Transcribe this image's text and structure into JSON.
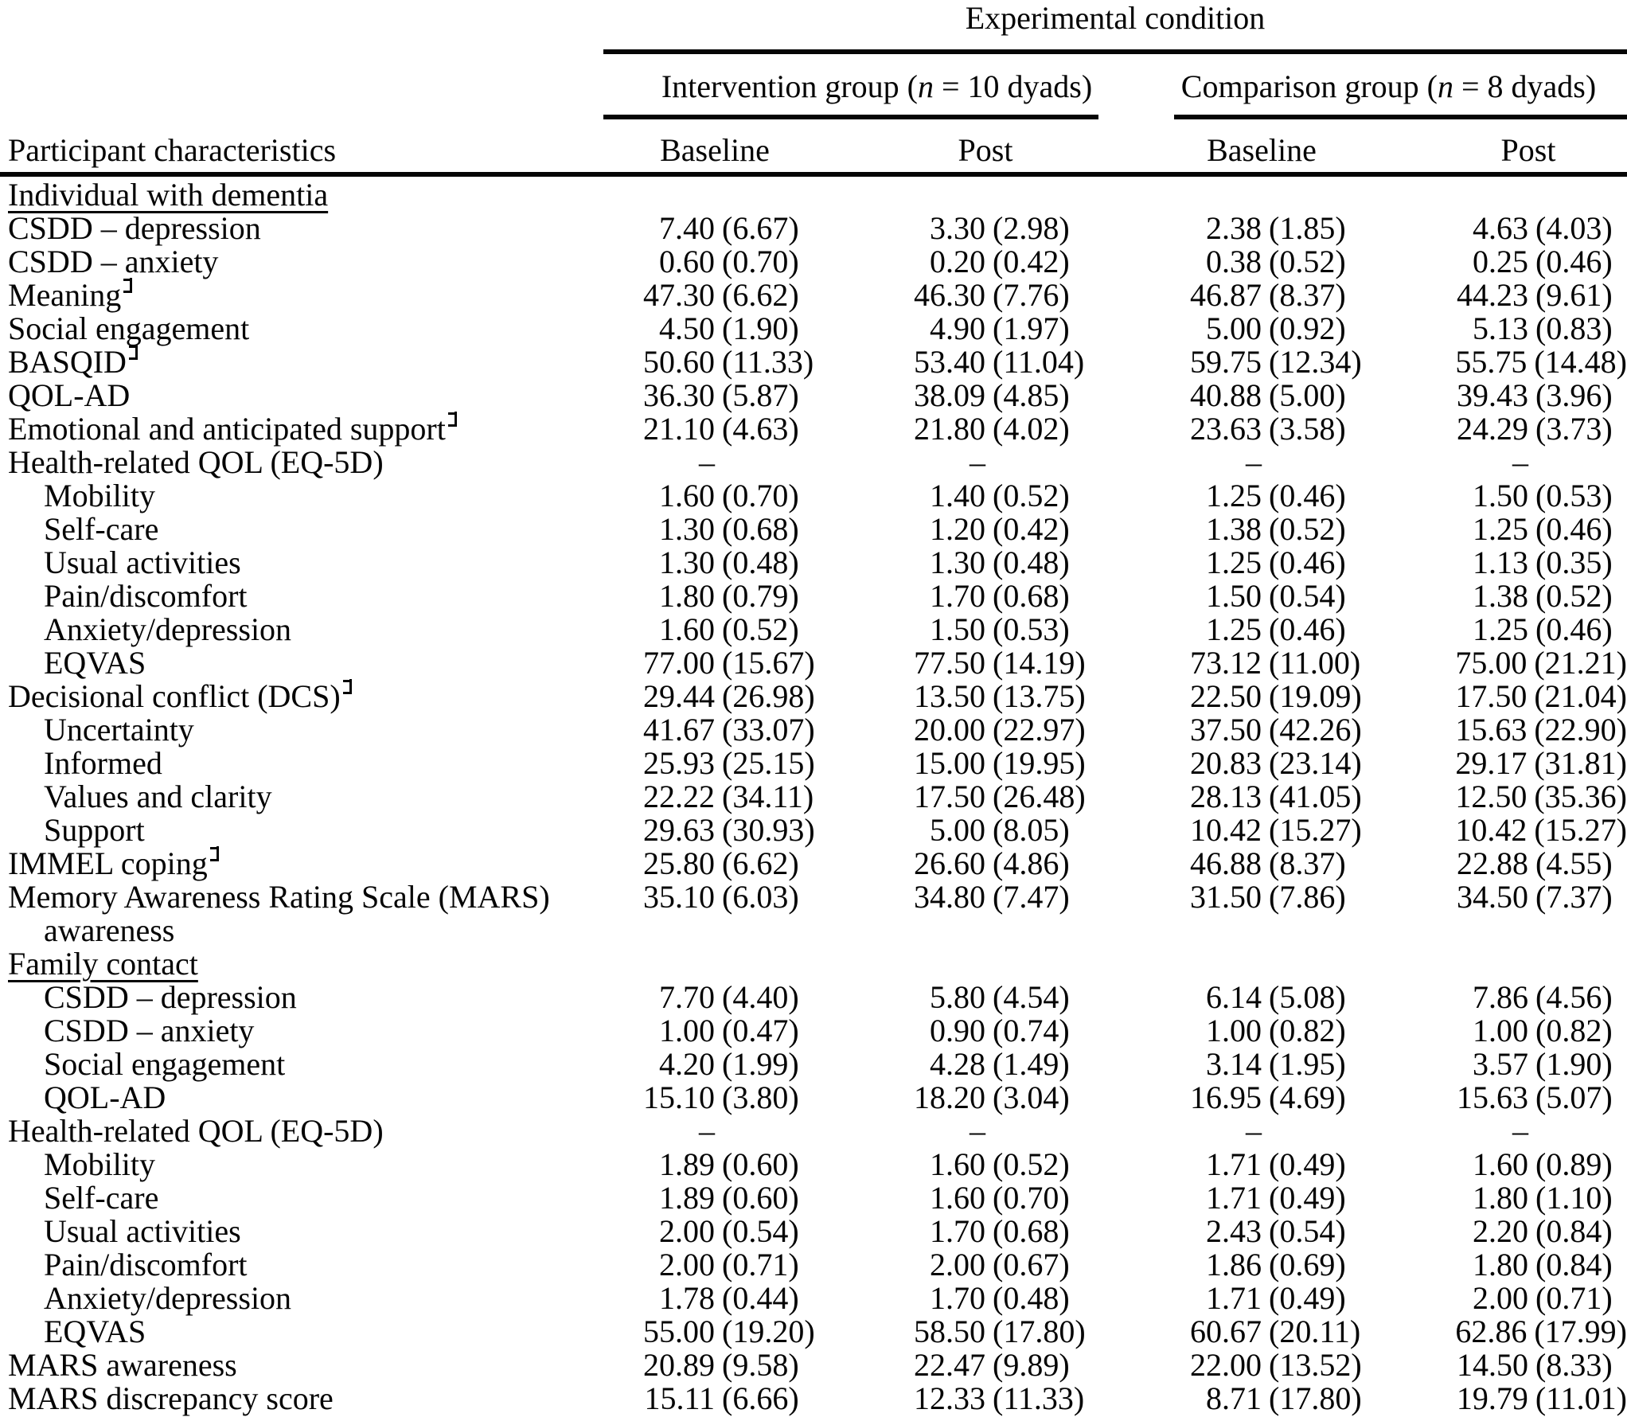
{
  "header": {
    "experimental": "Experimental condition",
    "participant": "Participant characteristics",
    "groups": [
      {
        "pre": "Intervention group (",
        "n": "n",
        "post": " = 10 dyads)"
      },
      {
        "pre": "Comparison group (",
        "n": "n",
        "post": " = 8 dyads)"
      }
    ],
    "subheaders": [
      "Baseline",
      "Post",
      "Baseline",
      "Post"
    ]
  },
  "footnote_marker_icon": "double-bar-left-turnstile",
  "rows": [
    {
      "label": "Individual with dementia",
      "section": true,
      "indent": 0,
      "marker": false,
      "values": null
    },
    {
      "label": "CSDD – depression",
      "section": false,
      "indent": 0,
      "marker": false,
      "values": [
        [
          "7.40",
          "(6.67)"
        ],
        [
          "3.30",
          "(2.98)"
        ],
        [
          "2.38",
          "(1.85)"
        ],
        [
          "4.63",
          "(4.03)"
        ]
      ]
    },
    {
      "label": "CSDD – anxiety",
      "section": false,
      "indent": 0,
      "marker": false,
      "values": [
        [
          "0.60",
          "(0.70)"
        ],
        [
          "0.20",
          "(0.42)"
        ],
        [
          "0.38",
          "(0.52)"
        ],
        [
          "0.25",
          "(0.46)"
        ]
      ]
    },
    {
      "label": "Meaning",
      "section": false,
      "indent": 0,
      "marker": true,
      "values": [
        [
          "47.30",
          "(6.62)"
        ],
        [
          "46.30",
          "(7.76)"
        ],
        [
          "46.87",
          "(8.37)"
        ],
        [
          "44.23",
          "(9.61)"
        ]
      ]
    },
    {
      "label": "Social engagement",
      "section": false,
      "indent": 0,
      "marker": false,
      "values": [
        [
          "4.50",
          "(1.90)"
        ],
        [
          "4.90",
          "(1.97)"
        ],
        [
          "5.00",
          "(0.92)"
        ],
        [
          "5.13",
          "(0.83)"
        ]
      ]
    },
    {
      "label": "BASQID",
      "section": false,
      "indent": 0,
      "marker": true,
      "values": [
        [
          "50.60",
          "(11.33)"
        ],
        [
          "53.40",
          "(11.04)"
        ],
        [
          "59.75",
          "(12.34)"
        ],
        [
          "55.75",
          "(14.48)"
        ]
      ]
    },
    {
      "label": "QOL-AD",
      "section": false,
      "indent": 0,
      "marker": false,
      "values": [
        [
          "36.30",
          "(5.87)"
        ],
        [
          "38.09",
          "(4.85)"
        ],
        [
          "40.88",
          "(5.00)"
        ],
        [
          "39.43",
          "(3.96)"
        ]
      ]
    },
    {
      "label": "Emotional and anticipated support",
      "section": false,
      "indent": 0,
      "marker": true,
      "values": [
        [
          "21.10",
          "(4.63)"
        ],
        [
          "21.80",
          "(4.02)"
        ],
        [
          "23.63",
          "(3.58)"
        ],
        [
          "24.29",
          "(3.73)"
        ]
      ]
    },
    {
      "label": "Health-related QOL (EQ-5D)",
      "section": false,
      "indent": 0,
      "marker": false,
      "values": [
        [
          "–",
          ""
        ],
        [
          "–",
          ""
        ],
        [
          "–",
          ""
        ],
        [
          "–",
          ""
        ]
      ]
    },
    {
      "label": "Mobility",
      "section": false,
      "indent": 1,
      "marker": false,
      "values": [
        [
          "1.60",
          "(0.70)"
        ],
        [
          "1.40",
          "(0.52)"
        ],
        [
          "1.25",
          "(0.46)"
        ],
        [
          "1.50",
          "(0.53)"
        ]
      ]
    },
    {
      "label": "Self-care",
      "section": false,
      "indent": 1,
      "marker": false,
      "values": [
        [
          "1.30",
          "(0.68)"
        ],
        [
          "1.20",
          "(0.42)"
        ],
        [
          "1.38",
          "(0.52)"
        ],
        [
          "1.25",
          "(0.46)"
        ]
      ]
    },
    {
      "label": "Usual activities",
      "section": false,
      "indent": 1,
      "marker": false,
      "values": [
        [
          "1.30",
          "(0.48)"
        ],
        [
          "1.30",
          "(0.48)"
        ],
        [
          "1.25",
          "(0.46)"
        ],
        [
          "1.13",
          "(0.35)"
        ]
      ]
    },
    {
      "label": "Pain/discomfort",
      "section": false,
      "indent": 1,
      "marker": false,
      "values": [
        [
          "1.80",
          "(0.79)"
        ],
        [
          "1.70",
          "(0.68)"
        ],
        [
          "1.50",
          "(0.54)"
        ],
        [
          "1.38",
          "(0.52)"
        ]
      ]
    },
    {
      "label": "Anxiety/depression",
      "section": false,
      "indent": 1,
      "marker": false,
      "values": [
        [
          "1.60",
          "(0.52)"
        ],
        [
          "1.50",
          "(0.53)"
        ],
        [
          "1.25",
          "(0.46)"
        ],
        [
          "1.25",
          "(0.46)"
        ]
      ]
    },
    {
      "label": "EQVAS",
      "section": false,
      "indent": 1,
      "marker": false,
      "values": [
        [
          "77.00",
          "(15.67)"
        ],
        [
          "77.50",
          "(14.19)"
        ],
        [
          "73.12",
          "(11.00)"
        ],
        [
          "75.00",
          "(21.21)"
        ]
      ]
    },
    {
      "label": "Decisional conflict (DCS)",
      "section": false,
      "indent": 0,
      "marker": true,
      "values": [
        [
          "29.44",
          "(26.98)"
        ],
        [
          "13.50",
          "(13.75)"
        ],
        [
          "22.50",
          "(19.09)"
        ],
        [
          "17.50",
          "(21.04)"
        ]
      ]
    },
    {
      "label": "Uncertainty",
      "section": false,
      "indent": 1,
      "marker": false,
      "values": [
        [
          "41.67",
          "(33.07)"
        ],
        [
          "20.00",
          "(22.97)"
        ],
        [
          "37.50",
          "(42.26)"
        ],
        [
          "15.63",
          "(22.90)"
        ]
      ]
    },
    {
      "label": "Informed",
      "section": false,
      "indent": 1,
      "marker": false,
      "values": [
        [
          "25.93",
          "(25.15)"
        ],
        [
          "15.00",
          "(19.95)"
        ],
        [
          "20.83",
          "(23.14)"
        ],
        [
          "29.17",
          "(31.81)"
        ]
      ]
    },
    {
      "label": "Values and clarity",
      "section": false,
      "indent": 1,
      "marker": false,
      "values": [
        [
          "22.22",
          "(34.11)"
        ],
        [
          "17.50",
          "(26.48)"
        ],
        [
          "28.13",
          "(41.05)"
        ],
        [
          "12.50",
          "(35.36)"
        ]
      ]
    },
    {
      "label": "Support",
      "section": false,
      "indent": 1,
      "marker": false,
      "values": [
        [
          "29.63",
          "(30.93)"
        ],
        [
          "5.00",
          "(8.05)"
        ],
        [
          "10.42",
          "(15.27)"
        ],
        [
          "10.42",
          "(15.27)"
        ]
      ]
    },
    {
      "label": "IMMEL coping",
      "section": false,
      "indent": 0,
      "marker": true,
      "values": [
        [
          "25.80",
          "(6.62)"
        ],
        [
          "26.60",
          "(4.86)"
        ],
        [
          "46.88",
          "(8.37)"
        ],
        [
          "22.88",
          "(4.55)"
        ]
      ]
    },
    {
      "label": "Memory Awareness Rating Scale (MARS)",
      "label2": "awareness",
      "section": false,
      "indent": 0,
      "marker": false,
      "values": [
        [
          "35.10",
          "(6.03)"
        ],
        [
          "34.80",
          "(7.47)"
        ],
        [
          "31.50",
          "(7.86)"
        ],
        [
          "34.50",
          "(7.37)"
        ]
      ]
    },
    {
      "label": "Family contact",
      "section": true,
      "indent": 0,
      "marker": false,
      "values": null
    },
    {
      "label": "CSDD – depression",
      "section": false,
      "indent": 1,
      "marker": false,
      "values": [
        [
          "7.70",
          "(4.40)"
        ],
        [
          "5.80",
          "(4.54)"
        ],
        [
          "6.14",
          "(5.08)"
        ],
        [
          "7.86",
          "(4.56)"
        ]
      ]
    },
    {
      "label": "CSDD – anxiety",
      "section": false,
      "indent": 1,
      "marker": false,
      "values": [
        [
          "1.00",
          "(0.47)"
        ],
        [
          "0.90",
          "(0.74)"
        ],
        [
          "1.00",
          "(0.82)"
        ],
        [
          "1.00",
          "(0.82)"
        ]
      ]
    },
    {
      "label": "Social engagement",
      "section": false,
      "indent": 1,
      "marker": false,
      "values": [
        [
          "4.20",
          "(1.99)"
        ],
        [
          "4.28",
          "(1.49)"
        ],
        [
          "3.14",
          "(1.95)"
        ],
        [
          "3.57",
          "(1.90)"
        ]
      ]
    },
    {
      "label": "QOL-AD",
      "section": false,
      "indent": 1,
      "marker": false,
      "values": [
        [
          "15.10",
          "(3.80)"
        ],
        [
          "18.20",
          "(3.04)"
        ],
        [
          "16.95",
          "(4.69)"
        ],
        [
          "15.63",
          "(5.07)"
        ]
      ]
    },
    {
      "label": "Health-related QOL (EQ-5D)",
      "section": false,
      "indent": 0,
      "marker": false,
      "values": [
        [
          "–",
          ""
        ],
        [
          "–",
          ""
        ],
        [
          "–",
          ""
        ],
        [
          "–",
          ""
        ]
      ]
    },
    {
      "label": "Mobility",
      "section": false,
      "indent": 1,
      "marker": false,
      "values": [
        [
          "1.89",
          "(0.60)"
        ],
        [
          "1.60",
          "(0.52)"
        ],
        [
          "1.71",
          "(0.49)"
        ],
        [
          "1.60",
          "(0.89)"
        ]
      ]
    },
    {
      "label": "Self-care",
      "section": false,
      "indent": 1,
      "marker": false,
      "values": [
        [
          "1.89",
          "(0.60)"
        ],
        [
          "1.60",
          "(0.70)"
        ],
        [
          "1.71",
          "(0.49)"
        ],
        [
          "1.80",
          "(1.10)"
        ]
      ]
    },
    {
      "label": "Usual activities",
      "section": false,
      "indent": 1,
      "marker": false,
      "values": [
        [
          "2.00",
          "(0.54)"
        ],
        [
          "1.70",
          "(0.68)"
        ],
        [
          "2.43",
          "(0.54)"
        ],
        [
          "2.20",
          "(0.84)"
        ]
      ]
    },
    {
      "label": "Pain/discomfort",
      "section": false,
      "indent": 1,
      "marker": false,
      "values": [
        [
          "2.00",
          "(0.71)"
        ],
        [
          "2.00",
          "(0.67)"
        ],
        [
          "1.86",
          "(0.69)"
        ],
        [
          "1.80",
          "(0.84)"
        ]
      ]
    },
    {
      "label": "Anxiety/depression",
      "section": false,
      "indent": 1,
      "marker": false,
      "values": [
        [
          "1.78",
          "(0.44)"
        ],
        [
          "1.70",
          "(0.48)"
        ],
        [
          "1.71",
          "(0.49)"
        ],
        [
          "2.00",
          "(0.71)"
        ]
      ]
    },
    {
      "label": "EQVAS",
      "section": false,
      "indent": 1,
      "marker": false,
      "values": [
        [
          "55.00",
          "(19.20)"
        ],
        [
          "58.50",
          "(17.80)"
        ],
        [
          "60.67",
          "(20.11)"
        ],
        [
          "62.86",
          "(17.99)"
        ]
      ]
    },
    {
      "label": "MARS awareness",
      "section": false,
      "indent": 0,
      "marker": false,
      "values": [
        [
          "20.89",
          "(9.58)"
        ],
        [
          "22.47",
          "(9.89)"
        ],
        [
          "22.00",
          "(13.52)"
        ],
        [
          "14.50",
          "(8.33)"
        ]
      ]
    },
    {
      "label": "MARS discrepancy score",
      "section": false,
      "indent": 0,
      "marker": false,
      "values": [
        [
          "15.11",
          "(6.66)"
        ],
        [
          "12.33",
          "(11.33)"
        ],
        [
          "8.71",
          "(17.80)"
        ],
        [
          "19.79",
          "(11.01)"
        ]
      ]
    }
  ]
}
